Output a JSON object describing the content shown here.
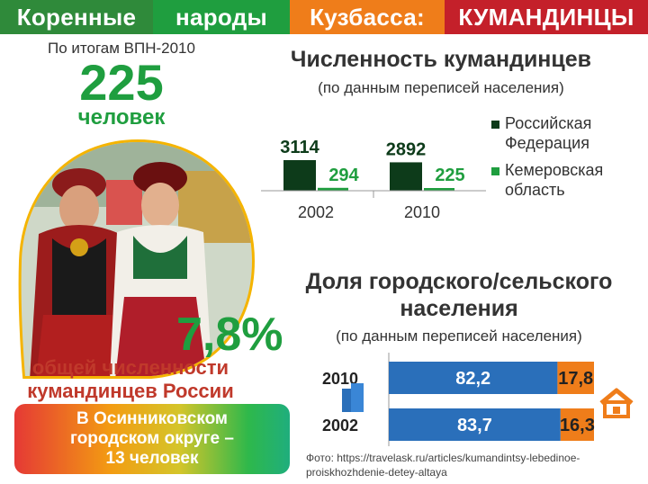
{
  "header": {
    "segments": [
      {
        "label": "Коренные",
        "color": "#2f8a3a"
      },
      {
        "label": "народы",
        "color": "#1f9e3f"
      },
      {
        "label": "Кузбасса:",
        "color": "#ef7d1a"
      },
      {
        "label": "КУМАНДИНЦЫ",
        "color": "#c4202a"
      }
    ]
  },
  "summary": {
    "census_note": "По итогам ВПН-2010",
    "count": "225",
    "count_unit": "человек",
    "percent": "7,8%",
    "share_line1": "общей численности",
    "share_line2": "кумандинцев  России",
    "box_line1": "В Осинниковском",
    "box_line2": "городском округе –",
    "box_line3": "13 человек",
    "accent_green": "#1f9e3f",
    "accent_red": "#c0392b"
  },
  "population_chart": {
    "title": "Численность кумандинцев",
    "subtitle": "(по данным переписей населения)",
    "legend": [
      {
        "label": "Российская Федерация",
        "color": "#0d3b1a"
      },
      {
        "label": "Кемеровская область",
        "color": "#1f9e3f"
      }
    ]
  },
  "urban_chart": {
    "title_line1": "Доля городского/сельского",
    "title_line2": "населения",
    "subtitle": "(по данным переписей населения)",
    "urban_color": "#2a6fba",
    "rural_color": "#ef7d1a"
  },
  "chart_data": [
    {
      "type": "bar",
      "title": "Численность кумандинцев",
      "categories": [
        "2002",
        "2010"
      ],
      "series": [
        {
          "name": "Российская Федерация",
          "values": [
            3114,
            2892
          ]
        },
        {
          "name": "Кемеровская область",
          "values": [
            294,
            225
          ]
        }
      ],
      "value_labels": [
        [
          "3114",
          "2892"
        ],
        [
          "294",
          "225"
        ]
      ],
      "ylim": [
        0,
        3114
      ]
    },
    {
      "type": "bar",
      "orientation": "horizontal-stacked",
      "title": "Доля городского/сельского населения",
      "categories": [
        "2010",
        "2002"
      ],
      "series": [
        {
          "values": [
            82.2,
            83.7
          ]
        },
        {
          "values": [
            17.8,
            16.3
          ]
        }
      ],
      "value_labels": [
        [
          "82,2",
          "83,7"
        ],
        [
          "17,8",
          "16,3"
        ]
      ],
      "xlim": [
        0,
        100
      ]
    }
  ],
  "footer": {
    "line1": "Фото: https://travelask.ru/articles/kumandintsy-lebedinoe-",
    "line2": "proiskhozhdenie-detey-altaya"
  }
}
